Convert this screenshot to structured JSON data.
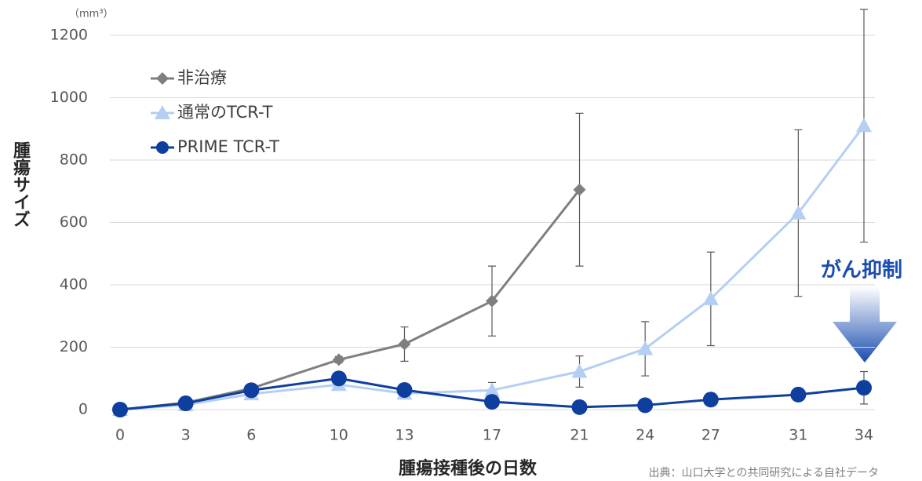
{
  "chart_data": {
    "type": "line",
    "y_unit": "（mm³）",
    "y_label": "腫瘍サイズ",
    "x_label": "腫瘍接種後の日数",
    "source": "出典：山口大学との共同研究による自社データ",
    "annotation": "がん抑制",
    "x": [
      0,
      3,
      6,
      10,
      13,
      17,
      21,
      24,
      27,
      31,
      34
    ],
    "xlim": [
      0,
      34
    ],
    "xticks": [
      0,
      3,
      6,
      10,
      13,
      17,
      21,
      24,
      27,
      31,
      34
    ],
    "ylim": [
      0,
      1200
    ],
    "yticks": [
      0,
      200,
      400,
      600,
      800,
      1000,
      1200
    ],
    "grid": true,
    "legend": "upper left",
    "series": [
      {
        "name": "非治療",
        "color": "#7f7f7f",
        "marker": "diamond",
        "values": [
          0,
          22,
          68,
          160,
          210,
          348,
          705,
          null,
          null,
          null,
          null
        ],
        "errors": [
          null,
          null,
          null,
          10,
          55,
          112,
          245,
          null,
          null,
          null,
          null
        ]
      },
      {
        "name": "通常のTCR-T",
        "color": "#b4cff2",
        "marker": "triangle",
        "values": [
          0,
          15,
          50,
          80,
          52,
          62,
          122,
          195,
          355,
          630,
          910
        ],
        "errors": [
          null,
          null,
          null,
          null,
          null,
          25,
          50,
          87,
          150,
          267,
          373
        ]
      },
      {
        "name": "PRIME TCR-T",
        "color": "#0f3f9e",
        "marker": "circle",
        "values": [
          0,
          20,
          62,
          100,
          63,
          25,
          8,
          14,
          32,
          48,
          70
        ],
        "errors": [
          null,
          null,
          null,
          null,
          null,
          null,
          null,
          null,
          null,
          18,
          52
        ]
      }
    ]
  }
}
